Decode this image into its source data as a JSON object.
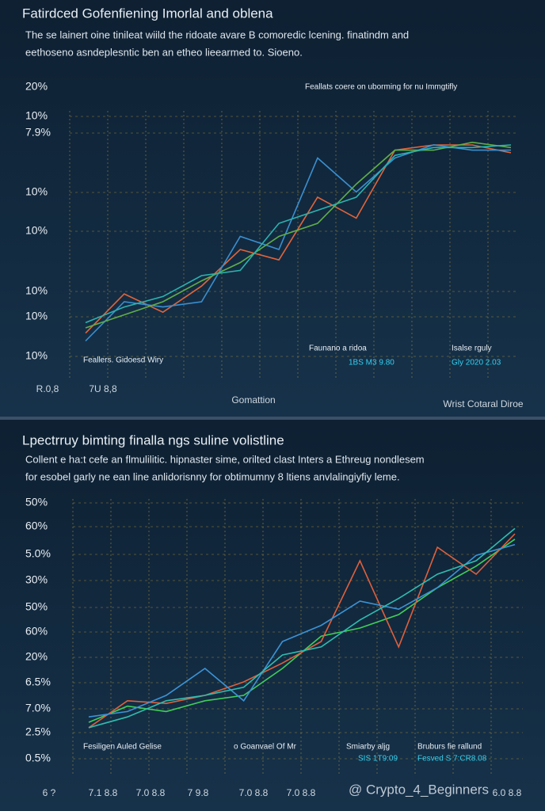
{
  "chart_data": [
    {
      "type": "line",
      "title": "Fatirdced Gofenfiening Imorlal and oblena",
      "subtitle": [
        "The se lainert oine tinileat wiild the ridoate avare B comoredic lcening. finatindm and",
        "eethoseno asndeplesntic ben an etheo lieearmed to. Sioeno."
      ],
      "note": "Feallats coere on uborming for nu Immgtifly",
      "y_labels": [
        "20%",
        "10%",
        "7.9%",
        "10%",
        "10%",
        "10%",
        "10%",
        "10%"
      ],
      "x_labels": [
        "R.0,8",
        "7U 8,8",
        "Gomattion",
        "Wrist Cotaral Diroe"
      ],
      "annotations": [
        "Feallers. Gidoesd Wiry",
        "Faunano a ridoa",
        "1BS M3 9.80",
        "Isalse rguly",
        "Gly 2020 2.03"
      ],
      "ylim": [
        0,
        100
      ],
      "series": [
        {
          "color": "#e2643a",
          "values": [
            18,
            33,
            26,
            36,
            50,
            46,
            70,
            62,
            88,
            90,
            90,
            87
          ]
        },
        {
          "color": "#3a8fd0",
          "values": [
            15,
            30,
            28,
            30,
            55,
            50,
            85,
            72,
            85,
            90,
            88,
            88
          ]
        },
        {
          "color": "#5fae4a",
          "values": [
            20,
            25,
            30,
            38,
            45,
            55,
            60,
            75,
            88,
            88,
            91,
            89
          ]
        },
        {
          "color": "#2bb3b0",
          "values": [
            22,
            28,
            32,
            40,
            42,
            60,
            65,
            70,
            86,
            89,
            89,
            90
          ]
        }
      ]
    },
    {
      "type": "line",
      "title": "Lpectrruy bimting finalla ngs suline volistline",
      "subtitle": [
        "Collent e ha:t cefe an flmulilitic. hipnaster sime, orilted clast Inters a Ethreug nondlesem",
        "for esobel garly ne ean line anlidorisnny for obtimumny 8 ltiens anvlalingiyfiy leme."
      ],
      "y_labels": [
        "50%",
        "60%",
        "5.0%",
        "30%",
        "50%",
        "60%",
        "20%",
        "6.5%",
        "7.0%",
        "2.5%",
        "0.5%"
      ],
      "x_labels": [
        "6 ?",
        "7.1 8.8",
        "7.0 8.8",
        "7 9.8",
        "7.0 8.8",
        "7.0 8.8",
        "6.0 8.8"
      ],
      "annotations": [
        "Fesiligen Auled Gelise",
        "o Goanvael Of Mr",
        "Smiarby aljg",
        "SIS 1T9:09",
        "Bruburs fie rallund",
        "Fesved S 7:CR8.08"
      ],
      "watermark": "@ Crypto_4_Beginners",
      "ylim": [
        0,
        100
      ],
      "series": [
        {
          "color": "#3fcf5a",
          "values": [
            20,
            26,
            24,
            28,
            30,
            40,
            52,
            55,
            60,
            70,
            78,
            88
          ]
        },
        {
          "color": "#e0603c",
          "values": [
            18,
            28,
            27,
            30,
            35,
            42,
            50,
            80,
            48,
            85,
            75,
            90
          ]
        },
        {
          "color": "#3b93d6",
          "values": [
            22,
            24,
            30,
            40,
            28,
            50,
            56,
            65,
            62,
            70,
            82,
            86
          ]
        },
        {
          "color": "#2fbdb0",
          "values": [
            18,
            22,
            28,
            30,
            33,
            45,
            48,
            58,
            66,
            75,
            80,
            92
          ]
        }
      ]
    }
  ]
}
